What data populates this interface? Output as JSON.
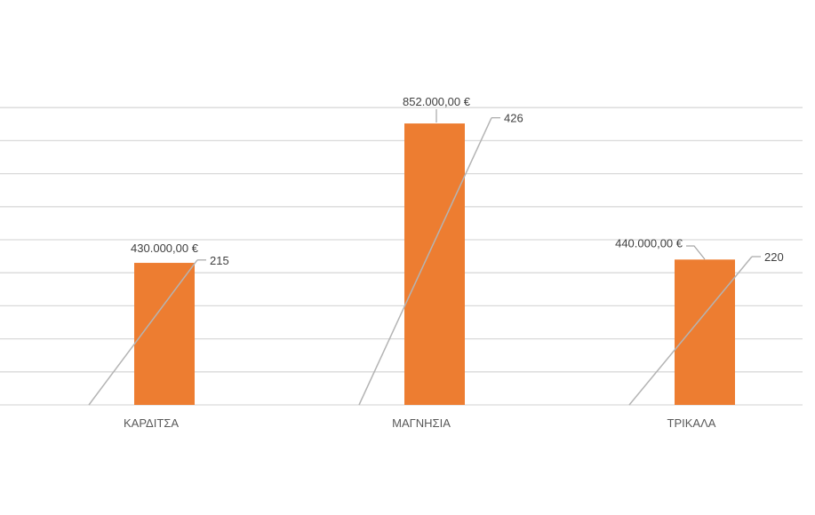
{
  "chart_data": {
    "type": "bar",
    "categories": [
      "ΚΑΡΔΙΤΣΑ",
      "ΜΑΓΝΗΣΙΑ",
      "ΤΡΙΚΑΛΑ"
    ],
    "series": [
      {
        "type": "bar",
        "values": [
          430000,
          852000,
          440000
        ],
        "data_labels": [
          "430.000,00 €",
          "852.000,00 €",
          "440.000,00 €"
        ],
        "color": "#ed7d31"
      },
      {
        "type": "line",
        "values": [
          215,
          426,
          220
        ],
        "data_labels": [
          "215",
          "426",
          "220"
        ],
        "color": "#b4b4b4"
      }
    ],
    "ylim": [
      0,
      900000
    ],
    "grid": true,
    "legend": "none"
  }
}
